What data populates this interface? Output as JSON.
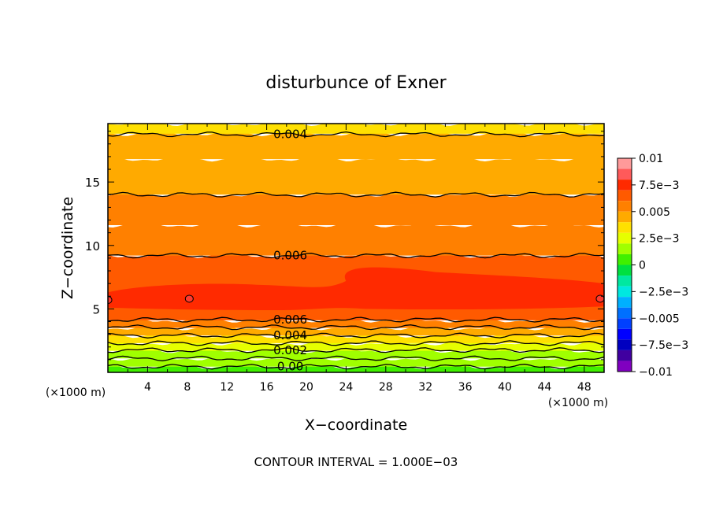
{
  "chart_data": {
    "type": "heatmap",
    "title": "disturbunce of Exner",
    "xlabel": "X−coordinate",
    "ylabel": "Z−coordinate",
    "x_unit_left": "(×1000 m)",
    "x_unit_right": "(×1000 m)",
    "footer": "CONTOUR INTERVAL = 1.000E−03",
    "xlim": [
      0,
      50
    ],
    "ylim": [
      0,
      19.6
    ],
    "x_ticks": [
      4,
      8,
      12,
      16,
      20,
      24,
      28,
      32,
      36,
      40,
      44,
      48
    ],
    "y_ticks": [
      5,
      10,
      15
    ],
    "colorbar": {
      "labels": [
        "0.01",
        "7.5e−3",
        "0.005",
        "2.5e−3",
        "0",
        "−2.5e−3",
        "−0.005",
        "−7.5e−3",
        "−0.01"
      ],
      "label_values": [
        0.01,
        0.0075,
        0.005,
        0.0025,
        0,
        -0.0025,
        -0.005,
        -0.0075,
        -0.01
      ],
      "bands": [
        {
          "lo": 0.009,
          "hi": 0.01,
          "color": "#ff9a9a"
        },
        {
          "lo": 0.008,
          "hi": 0.009,
          "color": "#ff5a5a"
        },
        {
          "lo": 0.007,
          "hi": 0.008,
          "color": "#ff2a00"
        },
        {
          "lo": 0.006,
          "hi": 0.007,
          "color": "#ff5a00"
        },
        {
          "lo": 0.005,
          "hi": 0.006,
          "color": "#ff8000"
        },
        {
          "lo": 0.004,
          "hi": 0.005,
          "color": "#ffaa00"
        },
        {
          "lo": 0.003,
          "hi": 0.004,
          "color": "#ffe000"
        },
        {
          "lo": 0.002,
          "hi": 0.003,
          "color": "#e6ff00"
        },
        {
          "lo": 0.001,
          "hi": 0.002,
          "color": "#a0ff00"
        },
        {
          "lo": 0.0,
          "hi": 0.001,
          "color": "#40f000"
        },
        {
          "lo": -0.001,
          "hi": 0.0,
          "color": "#00e040"
        },
        {
          "lo": -0.002,
          "hi": -0.001,
          "color": "#00e8a0"
        },
        {
          "lo": -0.003,
          "hi": -0.002,
          "color": "#00e8e0"
        },
        {
          "lo": -0.004,
          "hi": -0.003,
          "color": "#00b0ff"
        },
        {
          "lo": -0.005,
          "hi": -0.004,
          "color": "#0070ff"
        },
        {
          "lo": -0.006,
          "hi": -0.005,
          "color": "#0040ff"
        },
        {
          "lo": -0.007,
          "hi": -0.006,
          "color": "#0000ff"
        },
        {
          "lo": -0.008,
          "hi": -0.007,
          "color": "#0000c0"
        },
        {
          "lo": -0.009,
          "hi": -0.008,
          "color": "#4000a0"
        },
        {
          "lo": -0.01,
          "hi": -0.009,
          "color": "#8000c0"
        }
      ]
    },
    "field_bands": [
      {
        "z_bottom": 0.0,
        "z_top": 0.45,
        "value": 0.0005,
        "color": "#40f000"
      },
      {
        "z_bottom": 0.45,
        "z_top": 1.1,
        "value": 0.0015,
        "color": "#a0ff00"
      },
      {
        "z_bottom": 1.1,
        "z_top": 1.7,
        "value": 0.0015,
        "color": "#a0ff00"
      },
      {
        "z_bottom": 1.7,
        "z_top": 2.3,
        "value": 0.0025,
        "color": "#e6ff00"
      },
      {
        "z_bottom": 2.3,
        "z_top": 2.9,
        "value": 0.0035,
        "color": "#ffe000"
      },
      {
        "z_bottom": 2.9,
        "z_top": 3.5,
        "value": 0.0045,
        "color": "#ffaa00"
      },
      {
        "z_bottom": 3.5,
        "z_top": 4.1,
        "value": 0.0055,
        "color": "#ff8000"
      },
      {
        "z_bottom": 4.1,
        "z_top": 6.4,
        "value": 0.0065,
        "color": "#ff5a00"
      },
      {
        "z_bottom": 6.4,
        "z_top": 9.2,
        "value": 0.0065,
        "color": "#ff5a00"
      },
      {
        "z_bottom": 9.2,
        "z_top": 11.6,
        "value": 0.0055,
        "color": "#ff8000"
      },
      {
        "z_bottom": 11.6,
        "z_top": 14.0,
        "value": 0.0055,
        "color": "#ff8000"
      },
      {
        "z_bottom": 14.0,
        "z_top": 16.8,
        "value": 0.0045,
        "color": "#ffaa00"
      },
      {
        "z_bottom": 16.8,
        "z_top": 18.8,
        "value": 0.0045,
        "color": "#ffaa00"
      },
      {
        "z_bottom": 18.8,
        "z_top": 19.6,
        "value": 0.0035,
        "color": "#ffe000"
      }
    ],
    "core": {
      "value": 0.0075,
      "color": "#ff2a00",
      "z_range": [
        4.8,
        8.4
      ]
    },
    "contours": [
      {
        "level": 0.004,
        "z": 18.75,
        "label": "0.004",
        "label_x": 16
      },
      {
        "level": 0.005,
        "z": 14.0
      },
      {
        "level": 0.006,
        "z": 9.2,
        "label": "0.006",
        "label_x": 16
      },
      {
        "level": 0.006,
        "z": 4.15,
        "label": "0.006",
        "label_x": 16
      },
      {
        "level": 0.005,
        "z": 3.55
      },
      {
        "level": 0.004,
        "z": 2.9,
        "label": "0.004",
        "label_x": 16
      },
      {
        "level": 0.003,
        "z": 2.3
      },
      {
        "level": 0.002,
        "z": 1.75,
        "label": "0.002",
        "label_x": 16
      },
      {
        "level": 0.001,
        "z": 1.1
      },
      {
        "level": 0.0,
        "z": 0.45,
        "label": "0.00",
        "label_x": 16
      }
    ]
  }
}
